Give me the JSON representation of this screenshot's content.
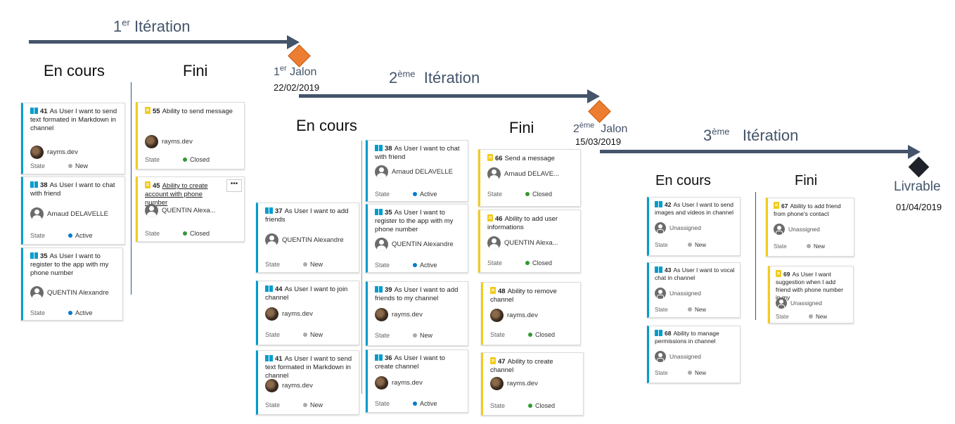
{
  "colors": {
    "arrow": "#44546a",
    "story": "#009ccc",
    "task": "#f2cb1d",
    "milestone": "#ed7d31",
    "deliverable": "#1f2329",
    "state_new": "#aaaaaa",
    "state_active": "#007acc",
    "state_closed": "#339933"
  },
  "iterations": [
    {
      "num": "1",
      "sup": "er",
      "label": "Itération"
    },
    {
      "num": "2",
      "sup": "ème",
      "label": "Itération"
    },
    {
      "num": "3",
      "sup": "ème",
      "label": "Itération"
    }
  ],
  "milestones": [
    {
      "num": "1",
      "sup": "er",
      "label": "Jalon",
      "date": "22/02/2019"
    },
    {
      "num": "2",
      "sup": "ème",
      "label": "Jalon",
      "date": "15/03/2019"
    },
    {
      "label": "Livrable",
      "date": "01/04/2019"
    }
  ],
  "columns": {
    "in_progress": "En cours",
    "done": "Fini"
  },
  "state_label": "State",
  "cards": [
    {
      "type": "story",
      "id": "41",
      "title": "As User I want to send text formated in Markdown in channel",
      "assignee": "rayms.dev",
      "avatar": "photo",
      "state": "New"
    },
    {
      "type": "story",
      "id": "38",
      "title": "As User I want to chat with friend",
      "assignee": "Arnaud DELAVELLE",
      "avatar": "generic",
      "state": "Active"
    },
    {
      "type": "story",
      "id": "35",
      "title": "As User I want to register to the app with my phone number",
      "assignee": "QUENTIN Alexandre",
      "avatar": "generic",
      "state": "Active"
    },
    {
      "type": "task",
      "id": "55",
      "title": "Ability to send message",
      "assignee": "rayms.dev",
      "avatar": "photo",
      "state": "Closed"
    },
    {
      "type": "task",
      "id": "45",
      "title": "Ability to create account with phone number",
      "assignee": "QUENTIN Alexa...",
      "avatar": "generic",
      "state": "Closed",
      "more": "•••"
    },
    {
      "type": "story",
      "id": "37",
      "title": "As User I want to add friends",
      "assignee": "QUENTIN Alexandre",
      "avatar": "generic",
      "state": "New"
    },
    {
      "type": "story",
      "id": "44",
      "title": "As User I want to join channel",
      "assignee": "rayms.dev",
      "avatar": "photo",
      "state": "New"
    },
    {
      "type": "story",
      "id": "41",
      "title": "As User I want to send text formated in Markdown in channel",
      "assignee": "rayms.dev",
      "avatar": "photo",
      "state": "New"
    },
    {
      "type": "story",
      "id": "38",
      "title": "As User I want to chat with friend",
      "assignee": "Arnaud DELAVELLE",
      "avatar": "generic",
      "state": "Active"
    },
    {
      "type": "story",
      "id": "35",
      "title": "As User I want to register to the app with my phone number",
      "assignee": "QUENTIN Alexandre",
      "avatar": "generic",
      "state": "Active"
    },
    {
      "type": "story",
      "id": "39",
      "title": "As User I want to add friends to my channel",
      "assignee": "rayms.dev",
      "avatar": "photo",
      "state": "New"
    },
    {
      "type": "story",
      "id": "36",
      "title": "As User I want to create channel",
      "assignee": "rayms.dev",
      "avatar": "photo",
      "state": "Active"
    },
    {
      "type": "task",
      "id": "66",
      "title": "Send a message",
      "assignee": "Arnaud DELAVE...",
      "avatar": "generic",
      "state": "Closed"
    },
    {
      "type": "task",
      "id": "46",
      "title": "Ability to add user informations",
      "assignee": "QUENTIN Alexa...",
      "avatar": "generic",
      "state": "Closed"
    },
    {
      "type": "task",
      "id": "48",
      "title": "Ability to remove channel",
      "assignee": "rayms.dev",
      "avatar": "photo",
      "state": "Closed"
    },
    {
      "type": "task",
      "id": "47",
      "title": "Ability to create channel",
      "assignee": "rayms.dev",
      "avatar": "photo",
      "state": "Closed"
    },
    {
      "type": "story",
      "id": "42",
      "title": "As User I want to send images and videos in channel",
      "assignee": "Unassigned",
      "avatar": "unass",
      "state": "New"
    },
    {
      "type": "story",
      "id": "43",
      "title": "As User I want to vocal chat in channel",
      "assignee": "Unassigned",
      "avatar": "unass",
      "state": "New"
    },
    {
      "type": "story",
      "id": "68",
      "title": "Ability to manage permissions in channel",
      "assignee": "Unassigned",
      "avatar": "unass",
      "state": "New"
    },
    {
      "type": "task",
      "id": "67",
      "title": "Ability to add friend from phone's contact",
      "assignee": "Unassigned",
      "avatar": "unass",
      "state": "New"
    },
    {
      "type": "task",
      "id": "69",
      "title": "As User I want suggestion when I add friend with phone number in my",
      "assignee": "Unassigned",
      "avatar": "unass",
      "state": "New"
    }
  ]
}
